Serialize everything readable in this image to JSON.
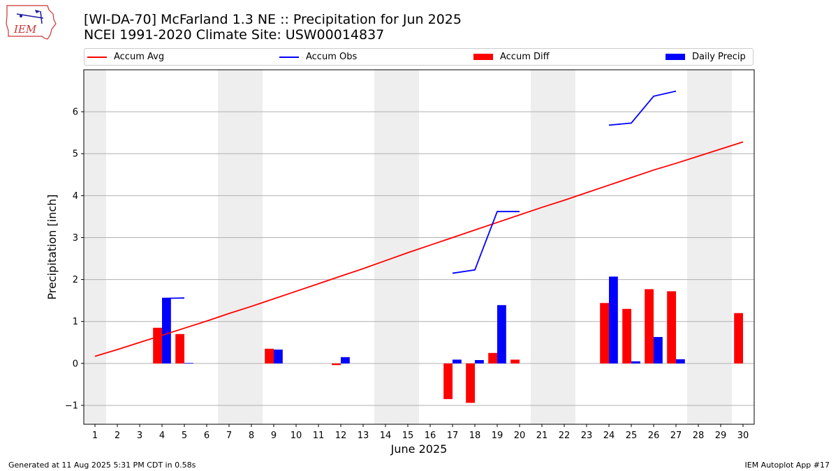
{
  "logo": {
    "text": "IEM"
  },
  "title_line1": "[WI-DA-70] McFarland 1.3 NE :: Precipitation for Jun 2025",
  "title_line2": "NCEI 1991-2020 Climate Site: USW00014837",
  "footer_left": "Generated at 11 Aug 2025 5:31 PM CDT in 0.58s",
  "footer_right": "IEM Autoplot App #17",
  "colors": {
    "avg": "#ff0000",
    "obs": "#0000ff",
    "diff": "#ff0000",
    "daily": "#0000ff",
    "weekend": "#eeeeee",
    "grid": "#b0b0b0"
  },
  "chart_data": {
    "type": "bar",
    "xlabel": "June 2025",
    "ylabel": "Precipitation [inch]",
    "xlim": [
      0.5,
      30.5
    ],
    "ylim": [
      -1.45,
      7.0
    ],
    "yticks": [
      -1,
      0,
      1,
      2,
      3,
      4,
      5,
      6
    ],
    "ytick_labels": [
      "−1",
      "0",
      "1",
      "2",
      "3",
      "4",
      "5",
      "6"
    ],
    "days": [
      1,
      2,
      3,
      4,
      5,
      6,
      7,
      8,
      9,
      10,
      11,
      12,
      13,
      14,
      15,
      16,
      17,
      18,
      19,
      20,
      21,
      22,
      23,
      24,
      25,
      26,
      27,
      28,
      29,
      30
    ],
    "weekend_days": [
      1,
      7,
      8,
      14,
      15,
      21,
      22,
      28,
      29
    ],
    "grid": "y",
    "legend": "top",
    "series": [
      {
        "name": "Accum Avg",
        "kind": "line",
        "values": [
          0.17,
          0.33,
          0.5,
          0.67,
          0.84,
          1.01,
          1.19,
          1.36,
          1.54,
          1.72,
          1.9,
          2.08,
          2.26,
          2.45,
          2.64,
          2.82,
          3.0,
          3.18,
          3.36,
          3.54,
          3.72,
          3.89,
          4.07,
          4.25,
          4.43,
          4.61,
          4.77,
          4.94,
          5.11,
          5.28
        ]
      },
      {
        "name": "Accum Obs",
        "kind": "line",
        "values": [
          null,
          null,
          null,
          1.55,
          1.56,
          null,
          null,
          null,
          null,
          null,
          null,
          null,
          null,
          null,
          null,
          null,
          2.15,
          2.23,
          3.62,
          3.62,
          null,
          null,
          null,
          5.68,
          5.73,
          6.37,
          6.49,
          null,
          null,
          null
        ]
      },
      {
        "name": "Accum Diff",
        "kind": "bar",
        "values": [
          null,
          null,
          null,
          0.85,
          0.7,
          null,
          null,
          null,
          0.35,
          null,
          null,
          -0.04,
          null,
          null,
          null,
          null,
          -0.85,
          -0.94,
          0.25,
          0.09,
          null,
          null,
          null,
          1.44,
          1.3,
          1.77,
          1.72,
          null,
          null,
          1.2
        ]
      },
      {
        "name": "Daily Precip",
        "kind": "bar",
        "values": [
          null,
          null,
          null,
          1.55,
          0.01,
          null,
          null,
          null,
          0.33,
          null,
          null,
          0.15,
          null,
          null,
          null,
          null,
          0.09,
          0.08,
          1.39,
          null,
          null,
          null,
          null,
          2.07,
          0.05,
          0.63,
          0.1,
          null,
          null,
          null
        ]
      }
    ]
  }
}
